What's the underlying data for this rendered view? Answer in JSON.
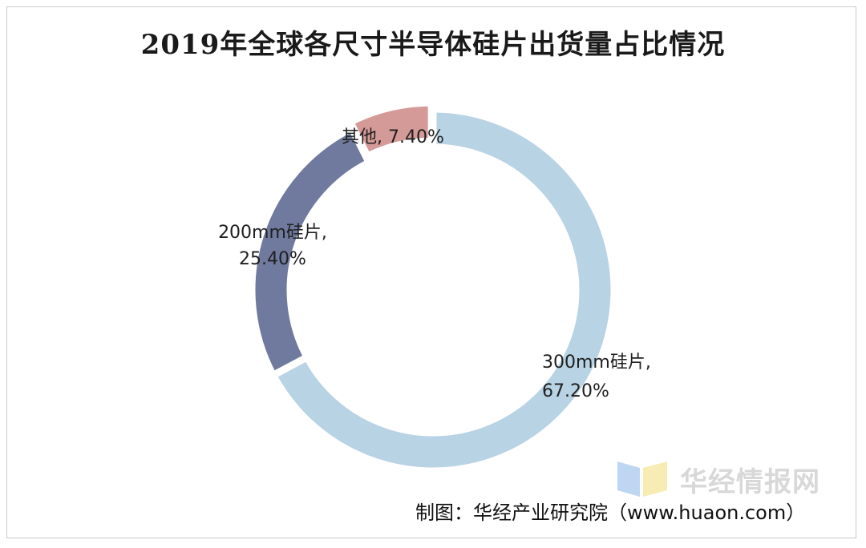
{
  "chart_data": {
    "type": "pie",
    "title": "2019年全球各尺寸半导体硅片出货量占比情况",
    "slices": [
      {
        "label": "300mm硅片",
        "value": 67.2,
        "value_text": "67.20%",
        "color": "#b8d3e4"
      },
      {
        "label": "200mm硅片",
        "value": 25.4,
        "value_text": "25.40%",
        "color": "#6f7a9e"
      },
      {
        "label": "其他",
        "value": 7.4,
        "value_text": "7.40%",
        "color": "#d49a97"
      }
    ],
    "donut": true
  },
  "source_text": "制图：华经产业研究院（www.huaon.com）",
  "watermark_text": "华经情报网"
}
